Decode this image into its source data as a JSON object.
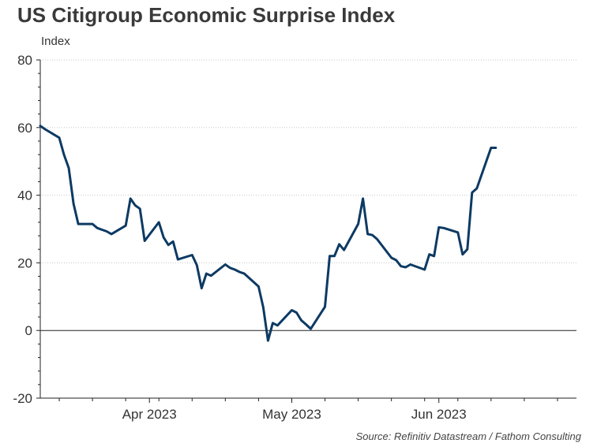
{
  "chart_data": {
    "type": "line",
    "title": "US Citigroup Economic Surprise Index",
    "ylabel": "Index",
    "source": "Source: Refinitiv Datastream / Fathom Consulting",
    "ylim": [
      -20,
      80
    ],
    "yticks": [
      80,
      60,
      40,
      20,
      0,
      -20
    ],
    "xlim": [
      "2023-03-09",
      "2023-06-30"
    ],
    "xticks": [
      {
        "date": "2023-04-01",
        "label": "Apr 2023"
      },
      {
        "date": "2023-05-01",
        "label": "May 2023"
      },
      {
        "date": "2023-06-01",
        "label": "Jun 2023"
      }
    ],
    "grid": true,
    "line_color": "#0d3a63",
    "series": [
      {
        "points": [
          [
            "2023-03-09",
            60.5
          ],
          [
            "2023-03-10",
            59.5
          ],
          [
            "2023-03-13",
            57.0
          ],
          [
            "2023-03-14",
            52.0
          ],
          [
            "2023-03-15",
            48.0
          ],
          [
            "2023-03-16",
            37.5
          ],
          [
            "2023-03-17",
            31.5
          ],
          [
            "2023-03-20",
            31.5
          ],
          [
            "2023-03-21",
            30.3
          ],
          [
            "2023-03-22",
            29.8
          ],
          [
            "2023-03-23",
            29.3
          ],
          [
            "2023-03-24",
            28.5
          ],
          [
            "2023-03-27",
            31.0
          ],
          [
            "2023-03-28",
            39.0
          ],
          [
            "2023-03-29",
            37.0
          ],
          [
            "2023-03-30",
            36.0
          ],
          [
            "2023-03-31",
            26.5
          ],
          [
            "2023-04-03",
            32.0
          ],
          [
            "2023-04-04",
            27.5
          ],
          [
            "2023-04-05",
            25.3
          ],
          [
            "2023-04-06",
            26.3
          ],
          [
            "2023-04-07",
            21.0
          ],
          [
            "2023-04-10",
            22.3
          ],
          [
            "2023-04-11",
            19.3
          ],
          [
            "2023-04-12",
            12.5
          ],
          [
            "2023-04-13",
            16.8
          ],
          [
            "2023-04-14",
            16.2
          ],
          [
            "2023-04-17",
            19.5
          ],
          [
            "2023-04-18",
            18.5
          ],
          [
            "2023-04-19",
            18.0
          ],
          [
            "2023-04-20",
            17.3
          ],
          [
            "2023-04-21",
            16.8
          ],
          [
            "2023-04-24",
            13.0
          ],
          [
            "2023-04-25",
            6.8
          ],
          [
            "2023-04-26",
            -3.0
          ],
          [
            "2023-04-27",
            2.2
          ],
          [
            "2023-04-28",
            1.5
          ],
          [
            "2023-05-01",
            6.0
          ],
          [
            "2023-05-02",
            5.3
          ],
          [
            "2023-05-03",
            3.0
          ],
          [
            "2023-05-04",
            1.8
          ],
          [
            "2023-05-05",
            0.5
          ],
          [
            "2023-05-08",
            7.0
          ],
          [
            "2023-05-09",
            22.0
          ],
          [
            "2023-05-10",
            22.0
          ],
          [
            "2023-05-11",
            25.5
          ],
          [
            "2023-05-12",
            23.8
          ],
          [
            "2023-05-15",
            31.5
          ],
          [
            "2023-05-16",
            39.0
          ],
          [
            "2023-05-17",
            28.5
          ],
          [
            "2023-05-18",
            28.2
          ],
          [
            "2023-05-19",
            27.0
          ],
          [
            "2023-05-22",
            21.5
          ],
          [
            "2023-05-23",
            20.8
          ],
          [
            "2023-05-24",
            19.0
          ],
          [
            "2023-05-25",
            18.7
          ],
          [
            "2023-05-26",
            19.5
          ],
          [
            "2023-05-29",
            18.0
          ],
          [
            "2023-05-30",
            22.5
          ],
          [
            "2023-05-31",
            22.0
          ],
          [
            "2023-06-01",
            30.5
          ],
          [
            "2023-06-02",
            30.3
          ],
          [
            "2023-06-05",
            29.0
          ],
          [
            "2023-06-06",
            22.5
          ],
          [
            "2023-06-07",
            24.0
          ],
          [
            "2023-06-08",
            40.8
          ],
          [
            "2023-06-09",
            42.0
          ],
          [
            "2023-06-12",
            54.0
          ],
          [
            "2023-06-13",
            54.0
          ]
        ]
      }
    ]
  }
}
